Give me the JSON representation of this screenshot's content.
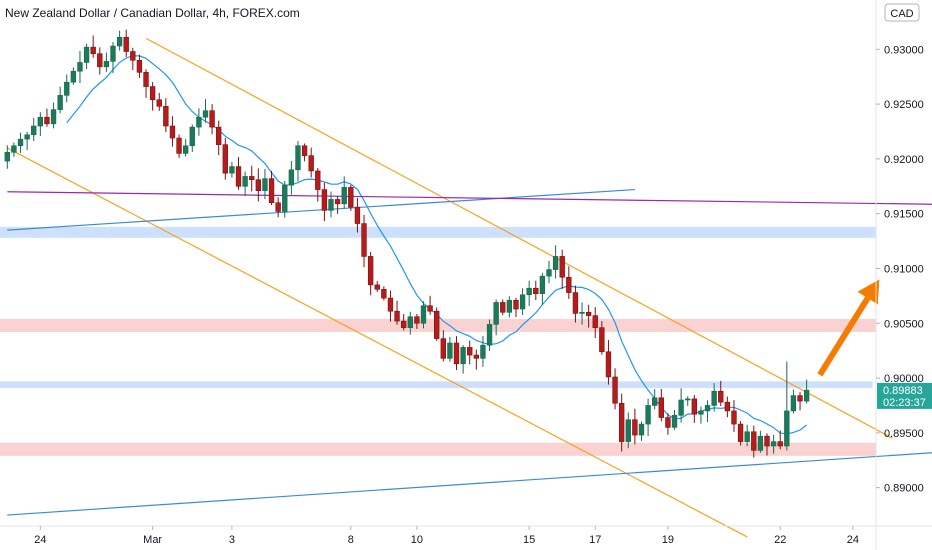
{
  "chart_data": {
    "type": "candlestick",
    "title": "New Zealand Dollar / Canadian Dollar, 4h, FOREX.com",
    "currency_badge": "CAD",
    "ylim": [
      0.8865,
      0.9345
    ],
    "y_ticks": [
      "0.93000",
      "0.92500",
      "0.92000",
      "0.91500",
      "0.91000",
      "0.90500",
      "0.90000",
      "0.89500",
      "0.89000"
    ],
    "y_tick_values": [
      0.93,
      0.925,
      0.92,
      0.915,
      0.91,
      0.905,
      0.9,
      0.895,
      0.89
    ],
    "x_ticks": [
      "24",
      "Mar",
      "3",
      "8",
      "10",
      "15",
      "17",
      "19",
      "22",
      "24"
    ],
    "x_tick_index": [
      5,
      22,
      34,
      52,
      62,
      79,
      89,
      100,
      117,
      128
    ],
    "n_bars": 132,
    "current_price": "0.89883",
    "countdown": "02:23:37",
    "colors": {
      "up": "#26a69a",
      "down": "#ef5350",
      "up_fill": "#1b7a5a",
      "down_fill": "#b71c1c",
      "ma": "#2196f3",
      "channel": "#f7a21b",
      "support_line": "#2962ff",
      "resistance_line": "#9c27b0",
      "zone_blue": "#bcd6ff",
      "zone_red": "#f8c3c3",
      "arrow": "#f57c00",
      "price_badge": "#26a69a"
    },
    "candles_close": [
      0.9206,
      0.9212,
      0.9218,
      0.9222,
      0.923,
      0.9238,
      0.9232,
      0.9245,
      0.9258,
      0.927,
      0.928,
      0.9288,
      0.9302,
      0.9296,
      0.9284,
      0.9289,
      0.9303,
      0.9311,
      0.9298,
      0.929,
      0.9279,
      0.9266,
      0.9254,
      0.9248,
      0.923,
      0.9219,
      0.9205,
      0.9212,
      0.9229,
      0.9238,
      0.9244,
      0.9229,
      0.9213,
      0.9187,
      0.9193,
      0.9175,
      0.9184,
      0.9181,
      0.9171,
      0.9182,
      0.916,
      0.9152,
      0.9176,
      0.919,
      0.9212,
      0.9203,
      0.9189,
      0.9172,
      0.9153,
      0.9163,
      0.9159,
      0.9174,
      0.9156,
      0.9141,
      0.9111,
      0.9085,
      0.9081,
      0.9073,
      0.9061,
      0.9052,
      0.9046,
      0.9056,
      0.905,
      0.9066,
      0.9061,
      0.9036,
      0.9018,
      0.9032,
      0.9013,
      0.9028,
      0.9021,
      0.9018,
      0.903,
      0.9049,
      0.9069,
      0.906,
      0.9071,
      0.9063,
      0.9076,
      0.9082,
      0.9077,
      0.9093,
      0.9099,
      0.9111,
      0.9092,
      0.9078,
      0.9059,
      0.906,
      0.9057,
      0.9046,
      0.9024,
      0.9001,
      0.8977,
      0.8942,
      0.8962,
      0.8948,
      0.8958,
      0.8975,
      0.8982,
      0.8964,
      0.8955,
      0.8966,
      0.898,
      0.8981,
      0.8967,
      0.897,
      0.8975,
      0.8988,
      0.8978,
      0.897,
      0.8958,
      0.8942,
      0.8951,
      0.8934,
      0.8947,
      0.8938,
      0.8942,
      0.8938,
      0.897,
      0.8984,
      0.8979,
      0.8989
    ],
    "trendlines": [
      {
        "kind": "channel-upper",
        "p1": [
          21,
          0.931
        ],
        "p2": [
          134,
          0.8945
        ]
      },
      {
        "kind": "channel-lower",
        "p1": [
          0,
          0.921
        ],
        "p2": [
          112,
          0.8855
        ]
      },
      {
        "kind": "support",
        "p1": [
          0,
          0.9135
        ],
        "p2": [
          95,
          0.9172
        ]
      },
      {
        "kind": "support",
        "p1": [
          0,
          0.8875
        ],
        "p2": [
          160,
          0.894
        ]
      },
      {
        "kind": "resistance",
        "p1": [
          0,
          0.917
        ],
        "p2": [
          160,
          0.9157
        ]
      }
    ],
    "zones": [
      {
        "color": "blue",
        "from": 0.9128,
        "to": 0.9138,
        "x_end": 160
      },
      {
        "color": "red",
        "from": 0.9042,
        "to": 0.9054,
        "x_end": 160
      },
      {
        "color": "blue",
        "from": 0.8991,
        "to": 0.8997,
        "x_end": 131
      },
      {
        "color": "red",
        "from": 0.8929,
        "to": 0.8941,
        "x_end": 160
      }
    ],
    "arrow": {
      "from": [
        123,
        0.9003
      ],
      "to": [
        132,
        0.909
      ]
    }
  }
}
